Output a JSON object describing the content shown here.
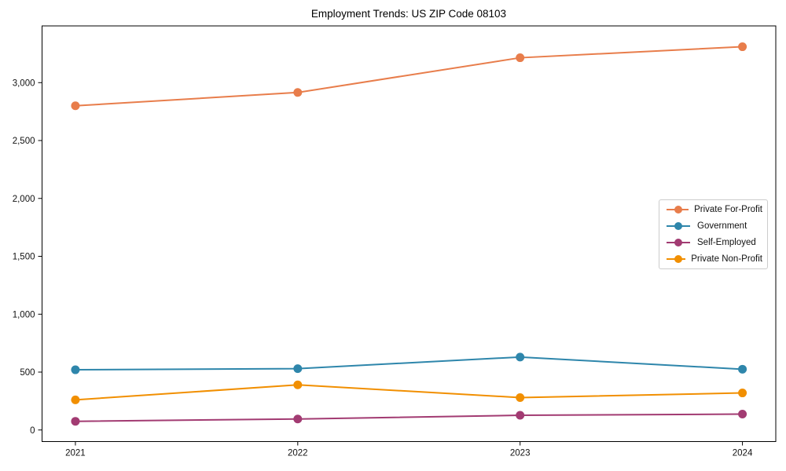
{
  "chart_data": {
    "type": "line",
    "title": "Employment Trends: US ZIP Code 08103",
    "x": [
      2021,
      2022,
      2023,
      2024
    ],
    "x_tick_labels": [
      "2021",
      "2022",
      "2023",
      "2024"
    ],
    "y_ticks": [
      0,
      500,
      1000,
      1500,
      2000,
      2500,
      3000
    ],
    "y_tick_labels": [
      "0",
      "500",
      "1,000",
      "1,500",
      "2,000",
      "2,500",
      "3,000"
    ],
    "xlim": [
      2020.85,
      2024.15
    ],
    "ylim": [
      -100,
      3490
    ],
    "grid": false,
    "legend_position": "center right",
    "xlabel": "",
    "ylabel": "",
    "axis_color": "#000000",
    "background_color": "#ffffff",
    "series": [
      {
        "name": "Private For-Profit",
        "color": "#e87d4b",
        "values": [
          2800,
          2915,
          3215,
          3310
        ]
      },
      {
        "name": "Government",
        "color": "#2e86ab",
        "values": [
          520,
          530,
          630,
          525
        ]
      },
      {
        "name": "Self-Employed",
        "color": "#a23b72",
        "values": [
          75,
          95,
          127,
          137
        ]
      },
      {
        "name": "Private Non-Profit",
        "color": "#f18f01",
        "values": [
          260,
          390,
          280,
          320
        ]
      }
    ]
  }
}
